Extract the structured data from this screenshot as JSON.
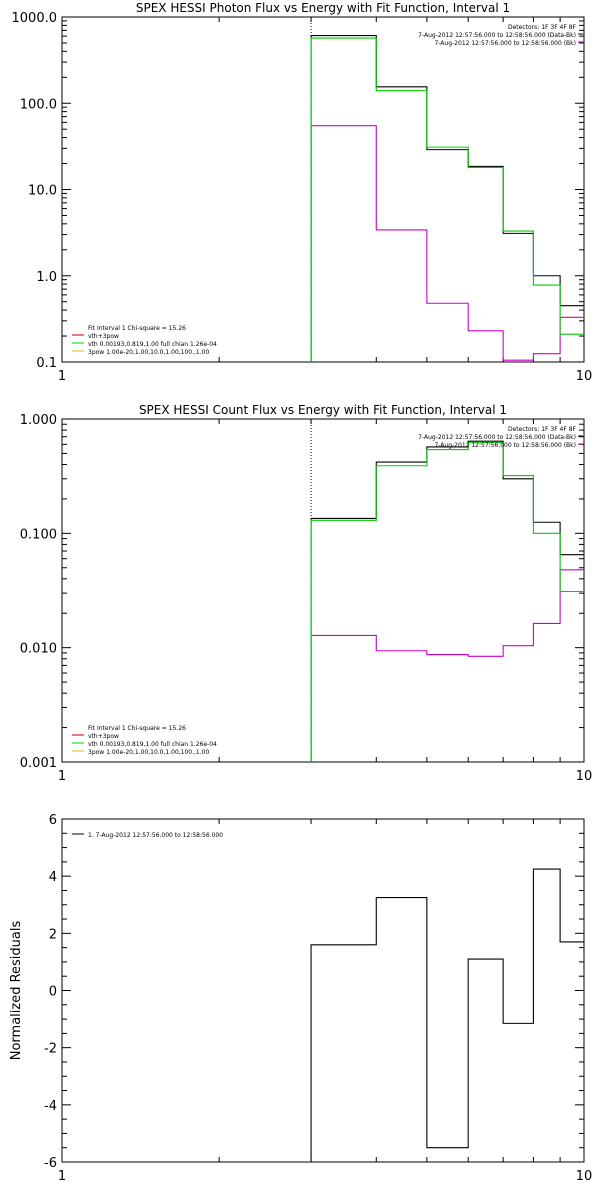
{
  "chart_data": [
    {
      "type": "line",
      "title": "SPEX HESSI Photon Flux vs Energy with Fit Function, Interval 1",
      "xlabel": "",
      "ylabel": "",
      "xscale": "log",
      "yscale": "log",
      "xlim": [
        1,
        10
      ],
      "ylim": [
        0.1,
        1000
      ],
      "x_ticks": [
        "1",
        "10"
      ],
      "y_ticks": [
        "0.1",
        "1.0",
        "10.0",
        "100.0",
        "1000.0"
      ],
      "vline_x": 3,
      "legend_top_right": [
        {
          "text": "Detectors: 1F 3F 4F 8F",
          "color": "#000000",
          "swatch": false
        },
        {
          "text": "7-Aug-2012 12:57:56.000 to 12:58:56.000 (Data-Bk)",
          "color": "#000000",
          "swatch": true
        },
        {
          "text": "7-Aug-2012 12:57:56.000 to 12:58:56.000 (Bk)",
          "color": "#cc00cc",
          "swatch": true
        }
      ],
      "legend_bottom_left": [
        {
          "text": "Fit Interval 1    Chi-square = 15.26",
          "color": "#000000",
          "swatch": false
        },
        {
          "text": "vth+3pow",
          "color": "#cc0000",
          "swatch": true
        },
        {
          "text": "vth 0.00193,0.819,1.00   full chian 1.26e-04",
          "color": "#00cc00",
          "swatch": true
        },
        {
          "text": "3pow 1.00e-20,1.00,10.0,1.00,100.,1.00",
          "color": "#cccc00",
          "swatch": true
        }
      ],
      "series": [
        {
          "name": "Data-Bk",
          "color": "#000000",
          "edges": [
            3,
            4,
            5,
            6,
            7,
            8,
            9,
            10
          ],
          "values": [
            610,
            155,
            29,
            18.5,
            3.1,
            1.0,
            0.45
          ]
        },
        {
          "name": "Bk",
          "color": "#cc00cc",
          "edges": [
            3,
            4,
            5,
            6,
            7,
            8,
            9,
            10
          ],
          "values": [
            55,
            3.4,
            0.48,
            0.23,
            0.105,
            0.125,
            0.33
          ]
        },
        {
          "name": "vth",
          "color": "#00cc00",
          "edges": [
            3,
            4,
            5,
            6,
            7,
            8,
            9,
            10
          ],
          "values": [
            570,
            140,
            31,
            18,
            3.3,
            0.78,
            0.21
          ]
        }
      ]
    },
    {
      "type": "line",
      "title": "SPEX HESSI Count Flux vs Energy with Fit Function, Interval 1",
      "xlabel": "",
      "ylabel": "",
      "xscale": "log",
      "yscale": "log",
      "xlim": [
        1,
        10
      ],
      "ylim": [
        0.001,
        1
      ],
      "x_ticks": [
        "1",
        "10"
      ],
      "y_ticks": [
        "0.001",
        "0.010",
        "0.100",
        "1.000"
      ],
      "vline_x": 3,
      "legend_top_right": [
        {
          "text": "Detectors: 1F 3F 4F 8F",
          "color": "#000000",
          "swatch": false
        },
        {
          "text": "7-Aug-2012 12:57:56.000 to 12:58:56.000 (Data-Bk)",
          "color": "#000000",
          "swatch": true
        },
        {
          "text": "7-Aug-2012 12:57:56.000 to 12:58:56.000 (Bk)",
          "color": "#cc00cc",
          "swatch": true
        }
      ],
      "legend_bottom_left": [
        {
          "text": "Fit Interval 1    Chi-square = 15.26",
          "color": "#000000",
          "swatch": false
        },
        {
          "text": "vth+3pow",
          "color": "#cc0000",
          "swatch": true
        },
        {
          "text": "vth 0.00193,0.819,1.00   full chian 1.26e-04",
          "color": "#00cc00",
          "swatch": true
        },
        {
          "text": "3pow 1.00e-20,1.00,10.0,1.00,100.,1.00",
          "color": "#cccc00",
          "swatch": true
        }
      ],
      "series": [
        {
          "name": "Data-Bk",
          "color": "#000000",
          "edges": [
            3,
            4,
            5,
            6,
            7,
            8,
            9,
            10
          ],
          "values": [
            0.135,
            0.42,
            0.57,
            0.64,
            0.3,
            0.125,
            0.065
          ]
        },
        {
          "name": "Bk",
          "color": "#cc00cc",
          "edges": [
            3,
            4,
            5,
            6,
            7,
            8,
            9,
            10
          ],
          "values": [
            0.0128,
            0.0094,
            0.0087,
            0.0084,
            0.0104,
            0.0163,
            0.048
          ]
        },
        {
          "name": "vth",
          "color": "#00cc00",
          "edges": [
            3,
            4,
            5,
            6,
            7,
            8,
            9,
            10
          ],
          "values": [
            0.13,
            0.39,
            0.54,
            0.62,
            0.32,
            0.1,
            0.031
          ]
        }
      ]
    },
    {
      "type": "line",
      "title": "",
      "xlabel": "",
      "ylabel": "Normalized Residuals",
      "xscale": "log",
      "yscale": "linear",
      "xlim": [
        1,
        10
      ],
      "ylim": [
        -6,
        6
      ],
      "x_ticks": [
        "1",
        "10"
      ],
      "y_ticks": [
        "-6",
        "-4",
        "-2",
        "0",
        "2",
        "4",
        "6"
      ],
      "legend_top_left": [
        {
          "text": "1.  7-Aug-2012 12:57:56.000 to 12:58:56.000",
          "color": "#000000",
          "swatch": true
        }
      ],
      "series": [
        {
          "name": "1.  7-Aug-2012 12:57:56.000 to 12:58:56.000",
          "color": "#000000",
          "edges": [
            3,
            4,
            5,
            6,
            7,
            8,
            9,
            10
          ],
          "values": [
            1.6,
            3.25,
            -5.5,
            1.1,
            -1.15,
            4.25,
            1.7
          ]
        }
      ]
    }
  ]
}
